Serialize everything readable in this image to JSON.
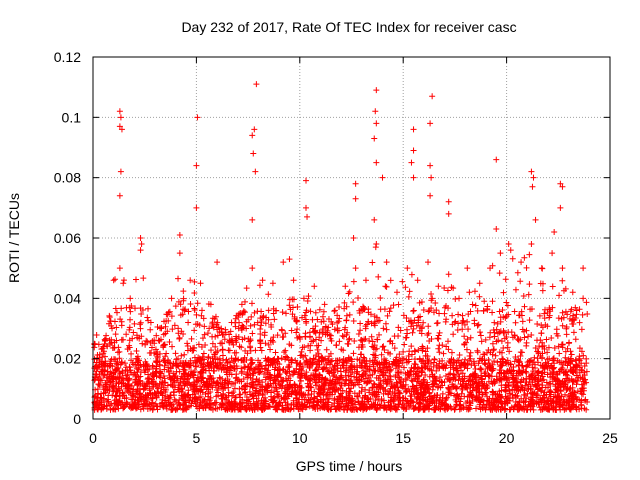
{
  "chart_data": {
    "type": "scatter",
    "title": "Day 232 of 2017, Rate Of TEC Index for receiver casc",
    "xlabel": "GPS time / hours",
    "ylabel": "ROTI / TECUs",
    "xlim": [
      0,
      25
    ],
    "ylim": [
      0,
      0.12
    ],
    "xticks": [
      0,
      5,
      10,
      15,
      20,
      25
    ],
    "xtick_labels": [
      "0",
      "5",
      "10",
      "15",
      "20",
      "25"
    ],
    "yticks": [
      0,
      0.02,
      0.04,
      0.06,
      0.08,
      0.1,
      0.12
    ],
    "ytick_labels": [
      "0",
      "0.02",
      "0.04",
      "0.06",
      "0.08",
      "0.1",
      "0.12"
    ],
    "grid": true,
    "marker": "+",
    "marker_color": "#ff0000",
    "series": [
      {
        "name": "ROTI",
        "x_range": [
          0,
          23.9
        ],
        "typical_range": [
          0.003,
          0.04
        ],
        "outliers": [
          {
            "x": 1.3,
            "y": 0.102
          },
          {
            "x": 1.35,
            "y": 0.1
          },
          {
            "x": 1.3,
            "y": 0.097
          },
          {
            "x": 1.4,
            "y": 0.096
          },
          {
            "x": 1.35,
            "y": 0.082
          },
          {
            "x": 1.3,
            "y": 0.074
          },
          {
            "x": 5.05,
            "y": 0.1
          },
          {
            "x": 5.0,
            "y": 0.084
          },
          {
            "x": 5.0,
            "y": 0.07
          },
          {
            "x": 7.9,
            "y": 0.111
          },
          {
            "x": 7.8,
            "y": 0.096
          },
          {
            "x": 7.7,
            "y": 0.094
          },
          {
            "x": 7.75,
            "y": 0.088
          },
          {
            "x": 7.85,
            "y": 0.082
          },
          {
            "x": 7.7,
            "y": 0.066
          },
          {
            "x": 10.3,
            "y": 0.079
          },
          {
            "x": 10.3,
            "y": 0.07
          },
          {
            "x": 10.35,
            "y": 0.067
          },
          {
            "x": 12.7,
            "y": 0.078
          },
          {
            "x": 12.7,
            "y": 0.073
          },
          {
            "x": 12.6,
            "y": 0.06
          },
          {
            "x": 13.7,
            "y": 0.109
          },
          {
            "x": 13.65,
            "y": 0.102
          },
          {
            "x": 13.7,
            "y": 0.098
          },
          {
            "x": 13.6,
            "y": 0.093
          },
          {
            "x": 13.7,
            "y": 0.085
          },
          {
            "x": 14.0,
            "y": 0.08
          },
          {
            "x": 13.6,
            "y": 0.066
          },
          {
            "x": 15.5,
            "y": 0.096
          },
          {
            "x": 15.5,
            "y": 0.089
          },
          {
            "x": 15.4,
            "y": 0.085
          },
          {
            "x": 15.5,
            "y": 0.08
          },
          {
            "x": 16.4,
            "y": 0.107
          },
          {
            "x": 16.3,
            "y": 0.098
          },
          {
            "x": 16.3,
            "y": 0.084
          },
          {
            "x": 16.35,
            "y": 0.08
          },
          {
            "x": 16.3,
            "y": 0.074
          },
          {
            "x": 17.2,
            "y": 0.072
          },
          {
            "x": 17.2,
            "y": 0.068
          },
          {
            "x": 19.5,
            "y": 0.086
          },
          {
            "x": 19.5,
            "y": 0.063
          },
          {
            "x": 21.2,
            "y": 0.082
          },
          {
            "x": 21.3,
            "y": 0.08
          },
          {
            "x": 21.25,
            "y": 0.077
          },
          {
            "x": 21.4,
            "y": 0.066
          },
          {
            "x": 22.6,
            "y": 0.078
          },
          {
            "x": 22.7,
            "y": 0.077
          },
          {
            "x": 22.6,
            "y": 0.07
          },
          {
            "x": 22.3,
            "y": 0.062
          },
          {
            "x": 23.7,
            "y": 0.05
          },
          {
            "x": 4.2,
            "y": 0.061
          },
          {
            "x": 2.3,
            "y": 0.06
          },
          {
            "x": 2.35,
            "y": 0.058
          },
          {
            "x": 9.5,
            "y": 0.053
          },
          {
            "x": 6.0,
            "y": 0.052
          },
          {
            "x": 18.1,
            "y": 0.05
          },
          {
            "x": 20.1,
            "y": 0.058
          }
        ],
        "peaks": [
          {
            "x": 0.0,
            "y": 0.03
          },
          {
            "x": 0.5,
            "y": 0.024
          },
          {
            "x": 1.0,
            "y": 0.046
          },
          {
            "x": 1.3,
            "y": 0.05
          },
          {
            "x": 1.8,
            "y": 0.04
          },
          {
            "x": 2.3,
            "y": 0.056
          },
          {
            "x": 2.8,
            "y": 0.032
          },
          {
            "x": 3.3,
            "y": 0.03
          },
          {
            "x": 3.8,
            "y": 0.04
          },
          {
            "x": 4.2,
            "y": 0.055
          },
          {
            "x": 4.7,
            "y": 0.046
          },
          {
            "x": 5.2,
            "y": 0.045
          },
          {
            "x": 5.7,
            "y": 0.038
          },
          {
            "x": 6.2,
            "y": 0.03
          },
          {
            "x": 6.7,
            "y": 0.032
          },
          {
            "x": 7.2,
            "y": 0.038
          },
          {
            "x": 7.7,
            "y": 0.05
          },
          {
            "x": 8.2,
            "y": 0.046
          },
          {
            "x": 8.7,
            "y": 0.045
          },
          {
            "x": 9.2,
            "y": 0.052
          },
          {
            "x": 9.7,
            "y": 0.046
          },
          {
            "x": 10.2,
            "y": 0.04
          },
          {
            "x": 10.7,
            "y": 0.044
          },
          {
            "x": 11.2,
            "y": 0.038
          },
          {
            "x": 11.7,
            "y": 0.036
          },
          {
            "x": 12.2,
            "y": 0.044
          },
          {
            "x": 12.7,
            "y": 0.05
          },
          {
            "x": 13.2,
            "y": 0.046
          },
          {
            "x": 13.7,
            "y": 0.058
          },
          {
            "x": 14.2,
            "y": 0.052
          },
          {
            "x": 14.7,
            "y": 0.042
          },
          {
            "x": 15.2,
            "y": 0.05
          },
          {
            "x": 15.7,
            "y": 0.046
          },
          {
            "x": 16.2,
            "y": 0.052
          },
          {
            "x": 16.7,
            "y": 0.044
          },
          {
            "x": 17.2,
            "y": 0.048
          },
          {
            "x": 17.7,
            "y": 0.04
          },
          {
            "x": 18.2,
            "y": 0.042
          },
          {
            "x": 18.7,
            "y": 0.045
          },
          {
            "x": 19.2,
            "y": 0.05
          },
          {
            "x": 19.7,
            "y": 0.055
          },
          {
            "x": 20.2,
            "y": 0.056
          },
          {
            "x": 20.7,
            "y": 0.052
          },
          {
            "x": 21.2,
            "y": 0.058
          },
          {
            "x": 21.7,
            "y": 0.05
          },
          {
            "x": 22.2,
            "y": 0.055
          },
          {
            "x": 22.7,
            "y": 0.05
          },
          {
            "x": 23.2,
            "y": 0.042
          },
          {
            "x": 23.7,
            "y": 0.04
          }
        ]
      }
    ]
  }
}
